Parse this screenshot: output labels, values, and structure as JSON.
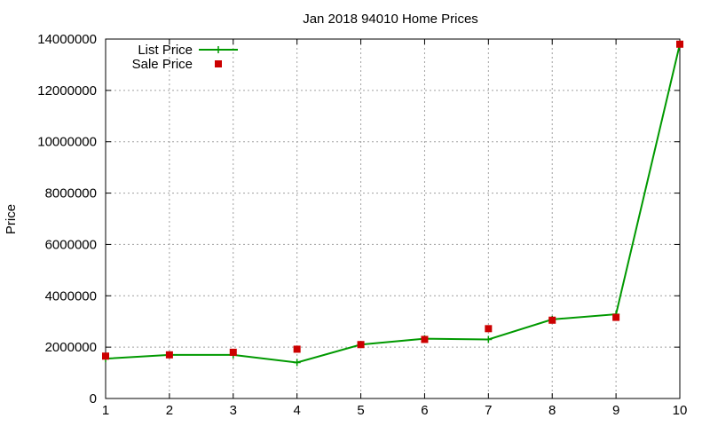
{
  "chart_data": {
    "type": "line",
    "title": "Jan 2018 94010 Home Prices",
    "xlabel": "",
    "ylabel": "Price",
    "x": [
      1,
      2,
      3,
      4,
      5,
      6,
      7,
      8,
      9,
      10
    ],
    "xlim": [
      1,
      10
    ],
    "ylim": [
      0,
      14000000
    ],
    "xticks": [
      "1",
      "2",
      "3",
      "4",
      "5",
      "6",
      "7",
      "8",
      "9",
      "10"
    ],
    "yticks": [
      "0",
      "2000000",
      "4000000",
      "6000000",
      "8000000",
      "10000000",
      "12000000",
      "14000000"
    ],
    "grid": true,
    "legend_position": "top-left",
    "series": [
      {
        "name": "List Price",
        "style": "line+cross",
        "color": "#009900",
        "values": [
          1550000,
          1700000,
          1700000,
          1400000,
          2100000,
          2330000,
          2300000,
          3080000,
          3280000,
          13800000
        ]
      },
      {
        "name": "Sale Price",
        "style": "square",
        "color": "#cc0000",
        "values": [
          1650000,
          1700000,
          1800000,
          1920000,
          2100000,
          2300000,
          2720000,
          3050000,
          3160000,
          13800000
        ]
      }
    ]
  }
}
